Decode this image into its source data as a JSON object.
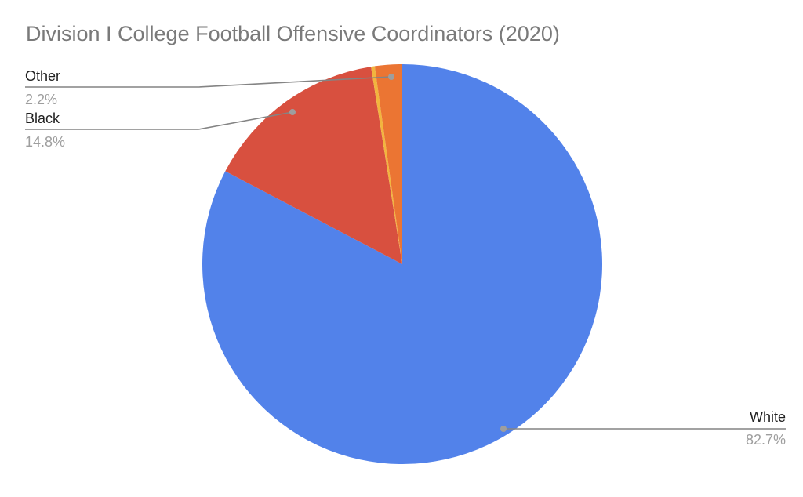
{
  "chart_data": {
    "type": "pie",
    "title": "Division I College Football Offensive Coordinators (2020)",
    "start_angle_deg": 0,
    "direction": "clockwise",
    "total": 100,
    "slices": [
      {
        "label": "White",
        "value": 82.7,
        "percent_label": "82.7%",
        "color": "#5282ea"
      },
      {
        "label": "Black",
        "value": 14.8,
        "percent_label": "14.8%",
        "color": "#d8503f"
      },
      {
        "label": "",
        "value": 0.3,
        "percent_label": "",
        "color": "#f2b53e"
      },
      {
        "label": "Other",
        "value": 2.2,
        "percent_label": "2.2%",
        "color": "#eb7533"
      }
    ],
    "legend": "callout-labels",
    "background": "#ffffff"
  }
}
